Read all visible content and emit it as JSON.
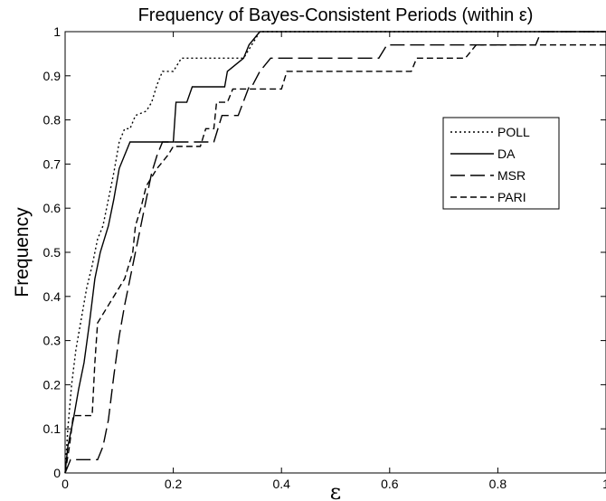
{
  "chart_data": {
    "type": "line",
    "title": "Frequency of Bayes-Consistent Periods (within ε)",
    "xlabel": "ε",
    "ylabel": "Frequency",
    "xlim": [
      0,
      1
    ],
    "ylim": [
      0,
      1
    ],
    "xticks": [
      "0",
      "0.2",
      "0.4",
      "0.6",
      "0.8",
      "1"
    ],
    "yticks": [
      "0",
      "0.1",
      "0.2",
      "0.3",
      "0.4",
      "0.5",
      "0.6",
      "0.7",
      "0.8",
      "0.9",
      "1"
    ],
    "grid": false,
    "legend_position": "top-right",
    "series": [
      {
        "name": "POLL",
        "dash": "dotted",
        "points": [
          [
            0,
            0
          ],
          [
            0.005,
            0.1
          ],
          [
            0.012,
            0.2
          ],
          [
            0.02,
            0.28
          ],
          [
            0.03,
            0.35
          ],
          [
            0.04,
            0.42
          ],
          [
            0.05,
            0.47
          ],
          [
            0.06,
            0.53
          ],
          [
            0.07,
            0.56
          ],
          [
            0.08,
            0.62
          ],
          [
            0.09,
            0.68
          ],
          [
            0.1,
            0.75
          ],
          [
            0.11,
            0.78
          ],
          [
            0.12,
            0.78
          ],
          [
            0.13,
            0.81
          ],
          [
            0.15,
            0.82
          ],
          [
            0.16,
            0.84
          ],
          [
            0.17,
            0.88
          ],
          [
            0.18,
            0.91
          ],
          [
            0.2,
            0.91
          ],
          [
            0.215,
            0.94
          ],
          [
            0.33,
            0.94
          ],
          [
            0.345,
            0.97
          ],
          [
            0.36,
            1.0
          ],
          [
            1,
            1.0
          ]
        ]
      },
      {
        "name": "DA",
        "dash": "solid",
        "points": [
          [
            0,
            0
          ],
          [
            0.005,
            0.06
          ],
          [
            0.015,
            0.12
          ],
          [
            0.025,
            0.19
          ],
          [
            0.035,
            0.25
          ],
          [
            0.045,
            0.34
          ],
          [
            0.055,
            0.44
          ],
          [
            0.065,
            0.5
          ],
          [
            0.08,
            0.56
          ],
          [
            0.09,
            0.62
          ],
          [
            0.1,
            0.69
          ],
          [
            0.11,
            0.72
          ],
          [
            0.12,
            0.75
          ],
          [
            0.2,
            0.75
          ],
          [
            0.205,
            0.84
          ],
          [
            0.225,
            0.84
          ],
          [
            0.235,
            0.875
          ],
          [
            0.295,
            0.875
          ],
          [
            0.3,
            0.91
          ],
          [
            0.33,
            0.94
          ],
          [
            0.34,
            0.97
          ],
          [
            0.36,
            1.0
          ],
          [
            1,
            1.0
          ]
        ]
      },
      {
        "name": "MSR",
        "dash": "longdash",
        "points": [
          [
            0,
            0
          ],
          [
            0.01,
            0.03
          ],
          [
            0.06,
            0.03
          ],
          [
            0.07,
            0.06
          ],
          [
            0.08,
            0.12
          ],
          [
            0.09,
            0.22
          ],
          [
            0.1,
            0.31
          ],
          [
            0.11,
            0.38
          ],
          [
            0.12,
            0.44
          ],
          [
            0.13,
            0.5
          ],
          [
            0.14,
            0.56
          ],
          [
            0.15,
            0.62
          ],
          [
            0.16,
            0.68
          ],
          [
            0.17,
            0.72
          ],
          [
            0.18,
            0.75
          ],
          [
            0.275,
            0.75
          ],
          [
            0.29,
            0.81
          ],
          [
            0.32,
            0.81
          ],
          [
            0.34,
            0.875
          ],
          [
            0.345,
            0.875
          ],
          [
            0.36,
            0.91
          ],
          [
            0.38,
            0.94
          ],
          [
            0.58,
            0.94
          ],
          [
            0.595,
            0.97
          ],
          [
            0.87,
            0.97
          ],
          [
            0.88,
            1.0
          ],
          [
            1,
            1.0
          ]
        ]
      },
      {
        "name": "PARI",
        "dash": "dashed",
        "points": [
          [
            0,
            0
          ],
          [
            0.008,
            0.06
          ],
          [
            0.015,
            0.13
          ],
          [
            0.05,
            0.13
          ],
          [
            0.055,
            0.25
          ],
          [
            0.06,
            0.34
          ],
          [
            0.08,
            0.38
          ],
          [
            0.095,
            0.41
          ],
          [
            0.11,
            0.44
          ],
          [
            0.125,
            0.5
          ],
          [
            0.13,
            0.56
          ],
          [
            0.14,
            0.6
          ],
          [
            0.15,
            0.65
          ],
          [
            0.17,
            0.69
          ],
          [
            0.19,
            0.72
          ],
          [
            0.2,
            0.74
          ],
          [
            0.25,
            0.74
          ],
          [
            0.26,
            0.78
          ],
          [
            0.275,
            0.78
          ],
          [
            0.28,
            0.84
          ],
          [
            0.3,
            0.84
          ],
          [
            0.31,
            0.87
          ],
          [
            0.4,
            0.87
          ],
          [
            0.41,
            0.91
          ],
          [
            0.64,
            0.91
          ],
          [
            0.65,
            0.94
          ],
          [
            0.74,
            0.94
          ],
          [
            0.76,
            0.97
          ],
          [
            1,
            0.97
          ]
        ]
      }
    ]
  }
}
